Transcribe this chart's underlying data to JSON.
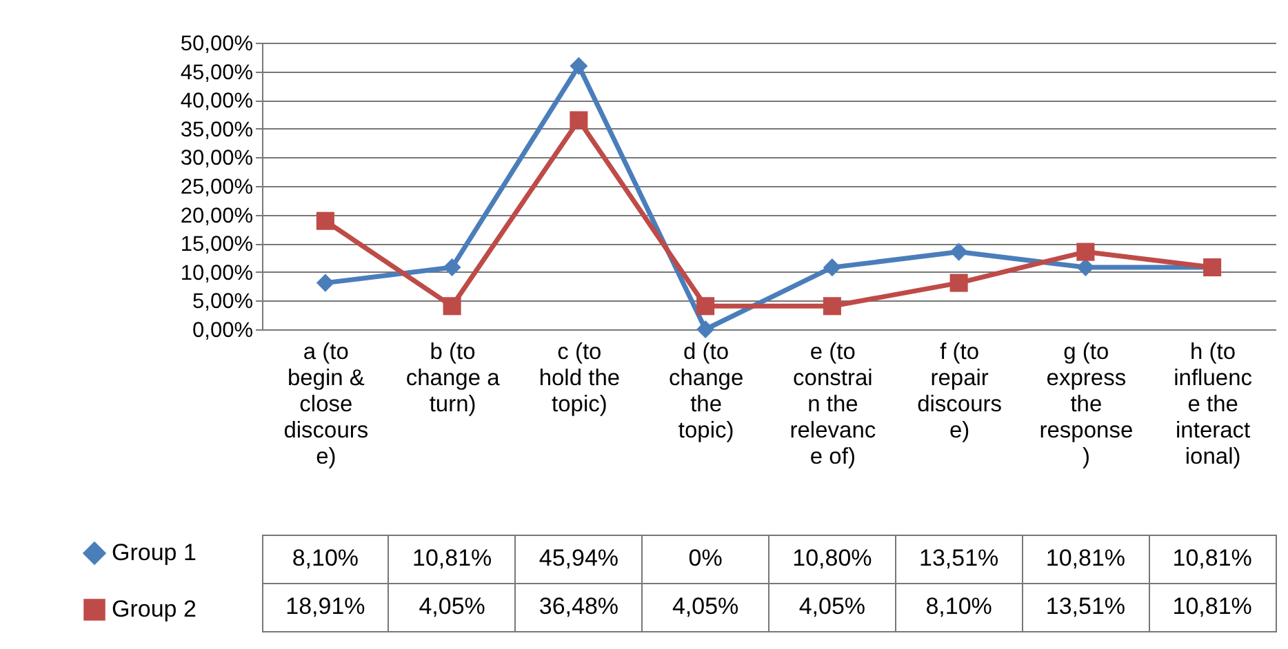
{
  "chart_data": {
    "type": "line",
    "categories": [
      "a (to begin & close discourse)",
      "b (to change a turn)",
      "c (to hold the topic)",
      "d (to change the topic)",
      "e (to constrain the relevance of)",
      "f (to repair discourse)",
      "g (to express the response)",
      "h (to influence the interactional)"
    ],
    "series": [
      {
        "name": "Group 1",
        "color": "#4a7ebb",
        "marker": "diamond",
        "values": [
          8.1,
          10.81,
          45.94,
          0,
          10.8,
          13.51,
          10.81,
          10.81
        ],
        "value_labels": [
          "8,10%",
          "10,81%",
          "45,94%",
          "0%",
          "10,80%",
          "13,51%",
          "10,81%",
          "10,81%"
        ]
      },
      {
        "name": "Group 2",
        "color": "#be4b48",
        "marker": "square",
        "values": [
          18.91,
          4.05,
          36.48,
          4.05,
          4.05,
          8.1,
          13.51,
          10.81
        ],
        "value_labels": [
          "18,91%",
          "4,05%",
          "36,48%",
          "4,05%",
          "4,05%",
          "8,10%",
          "13,51%",
          "10,81%"
        ]
      }
    ],
    "ylim": [
      0,
      50
    ],
    "yticks": [
      {
        "value": 0,
        "label": "0,00%"
      },
      {
        "value": 5,
        "label": "5,00%"
      },
      {
        "value": 10,
        "label": "10,00%"
      },
      {
        "value": 15,
        "label": "15,00%"
      },
      {
        "value": 20,
        "label": "20,00%"
      },
      {
        "value": 25,
        "label": "25,00%"
      },
      {
        "value": 30,
        "label": "30,00%"
      },
      {
        "value": 35,
        "label": "35,00%"
      },
      {
        "value": 40,
        "label": "40,00%"
      },
      {
        "value": 45,
        "label": "45,00%"
      },
      {
        "value": 50,
        "label": "50,00%"
      }
    ],
    "grid": "y",
    "legend": "bottom left"
  }
}
